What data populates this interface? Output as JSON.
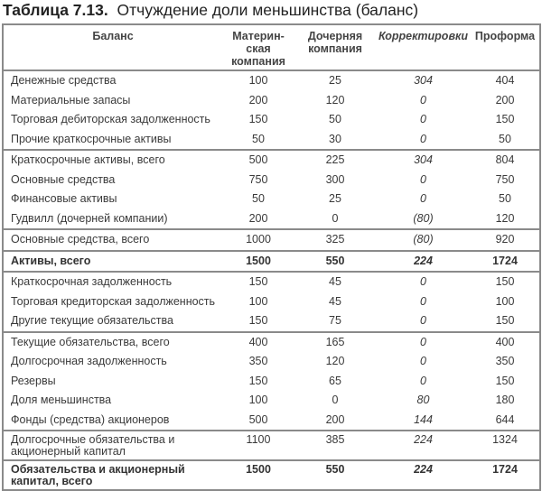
{
  "title": {
    "number": "Таблица 7.13.",
    "text": "Отчуждение доли меньшинства (баланс)"
  },
  "columns": [
    "Баланс",
    "Материн-ская компания",
    "Дочерняя компания",
    "Корректировки",
    "Проформа"
  ],
  "rows": [
    {
      "label": "Денежные средства",
      "parent": "100",
      "sub": "25",
      "adj": "304",
      "pro": "404"
    },
    {
      "label": "Материальные запасы",
      "parent": "200",
      "sub": "120",
      "adj": "0",
      "pro": "200"
    },
    {
      "label": "Торговая дебиторская задолженность",
      "parent": "150",
      "sub": "50",
      "adj": "0",
      "pro": "150"
    },
    {
      "label": "Прочие краткосрочные активы",
      "parent": "50",
      "sub": "30",
      "adj": "0",
      "pro": "50"
    },
    {
      "label": "Краткосрочные активы, всего",
      "parent": "500",
      "sub": "225",
      "adj": "304",
      "pro": "804"
    },
    {
      "label": "Основные средства",
      "parent": "750",
      "sub": "300",
      "adj": "0",
      "pro": "750"
    },
    {
      "label": "Финансовые активы",
      "parent": "50",
      "sub": "25",
      "adj": "0",
      "pro": "50"
    },
    {
      "label": "Гудвилл (дочерней компании)",
      "parent": "200",
      "sub": "0",
      "adj": "(80)",
      "pro": "120"
    },
    {
      "label": "Основные средства, всего",
      "parent": "1000",
      "sub": "325",
      "adj": "(80)",
      "pro": "920"
    },
    {
      "label": "Активы, всего",
      "parent": "1500",
      "sub": "550",
      "adj": "224",
      "pro": "1724"
    },
    {
      "label": "Краткосрочная задолженность",
      "parent": "150",
      "sub": "45",
      "adj": "0",
      "pro": "150"
    },
    {
      "label": "Торговая кредиторская задолженность",
      "parent": "100",
      "sub": "45",
      "adj": "0",
      "pro": "100"
    },
    {
      "label": "Другие текущие обязательства",
      "parent": "150",
      "sub": "75",
      "adj": "0",
      "pro": "150"
    },
    {
      "label": "Текущие обязательства, всего",
      "parent": "400",
      "sub": "165",
      "adj": "0",
      "pro": "400"
    },
    {
      "label": "Долгосрочная задолженность",
      "parent": "350",
      "sub": "120",
      "adj": "0",
      "pro": "350"
    },
    {
      "label": "Резервы",
      "parent": "150",
      "sub": "65",
      "adj": "0",
      "pro": "150"
    },
    {
      "label": "Доля меньшинства",
      "parent": "100",
      "sub": "0",
      "adj": "80",
      "pro": "180"
    },
    {
      "label": "Фонды (средства) акционеров",
      "parent": "500",
      "sub": "200",
      "adj": "144",
      "pro": "644"
    },
    {
      "label": "Долгосрочные обязательства и акционерный капитал",
      "parent": "1100",
      "sub": "385",
      "adj": "224",
      "pro": "1324"
    },
    {
      "label": "Обязательства и акционерный капитал, всего",
      "parent": "1500",
      "sub": "550",
      "adj": "224",
      "pro": "1724"
    }
  ]
}
